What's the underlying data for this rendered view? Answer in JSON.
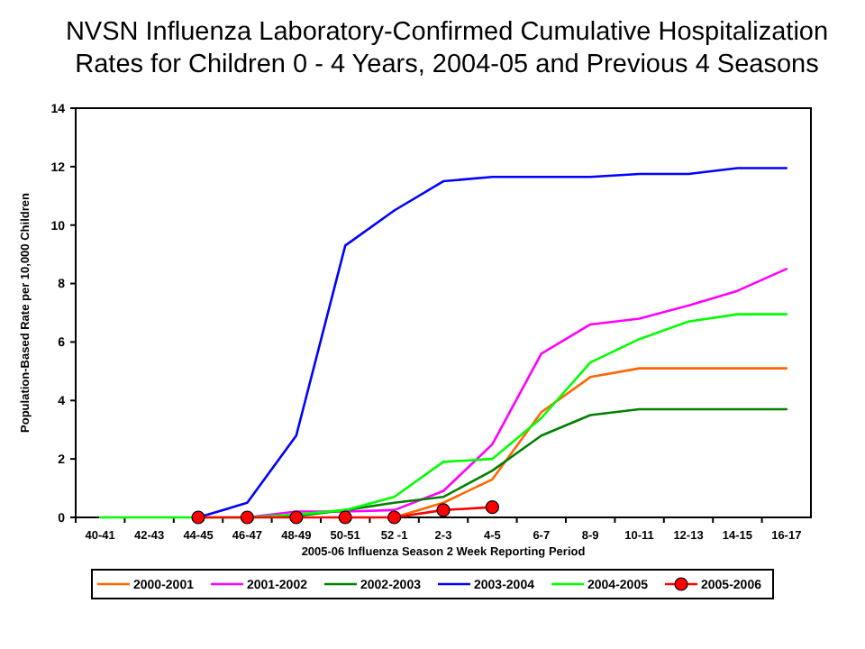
{
  "chart_data": {
    "type": "line",
    "title": "NVSN Influenza Laboratory-Confirmed Cumulative Hospitalization Rates for Children 0 - 4 Years, 2004-05 and Previous 4 Seasons",
    "xlabel": "2005-06 Influenza Season 2 Week Reporting Period",
    "ylabel": "Population-Based Rate per 10,000 Children",
    "categories": [
      "40-41",
      "42-43",
      "44-45",
      "46-47",
      "48-49",
      "50-51",
      "52 -1",
      "2-3",
      "4-5",
      "6-7",
      "8-9",
      "10-11",
      "12-13",
      "14-15",
      "16-17"
    ],
    "ylim": [
      0,
      14
    ],
    "yticks": [
      0,
      2,
      4,
      6,
      8,
      10,
      12,
      14
    ],
    "grid": false,
    "legend": "bottom",
    "marker": "none",
    "line_style": "solid",
    "series": [
      {
        "name": "2000-2001",
        "color": "#ff6600",
        "values": [
          null,
          null,
          null,
          null,
          null,
          null,
          0,
          0.5,
          1.3,
          3.6,
          4.8,
          5.1,
          5.1,
          5.1,
          5.1
        ]
      },
      {
        "name": "2001-2002",
        "color": "#ff00ff",
        "values": [
          null,
          null,
          null,
          0,
          0.2,
          0.2,
          0.25,
          0.9,
          2.5,
          5.6,
          6.6,
          6.8,
          7.25,
          7.75,
          8.5
        ]
      },
      {
        "name": "2002-2003",
        "color": "#008000",
        "values": [
          null,
          null,
          null,
          0,
          0.05,
          0.25,
          0.5,
          0.7,
          1.6,
          2.8,
          3.5,
          3.7,
          3.7,
          3.7,
          3.7
        ]
      },
      {
        "name": "2003-2004",
        "color": "#0000ff",
        "values": [
          null,
          null,
          0,
          0.5,
          2.8,
          9.3,
          10.5,
          11.5,
          11.65,
          11.65,
          11.65,
          11.75,
          11.75,
          11.95,
          11.95
        ]
      },
      {
        "name": "2004-2005",
        "color": "#00ff00",
        "values": [
          0,
          0,
          0,
          0,
          0.1,
          0.25,
          0.7,
          1.9,
          2.0,
          3.4,
          5.3,
          6.1,
          6.7,
          6.95,
          6.95
        ]
      },
      {
        "name": "2005-2006",
        "color": "#ff0000",
        "marker": "circle",
        "values": [
          null,
          null,
          0,
          0,
          0,
          0,
          0,
          0.25,
          0.35,
          null,
          null,
          null,
          null,
          null,
          null
        ]
      }
    ]
  }
}
